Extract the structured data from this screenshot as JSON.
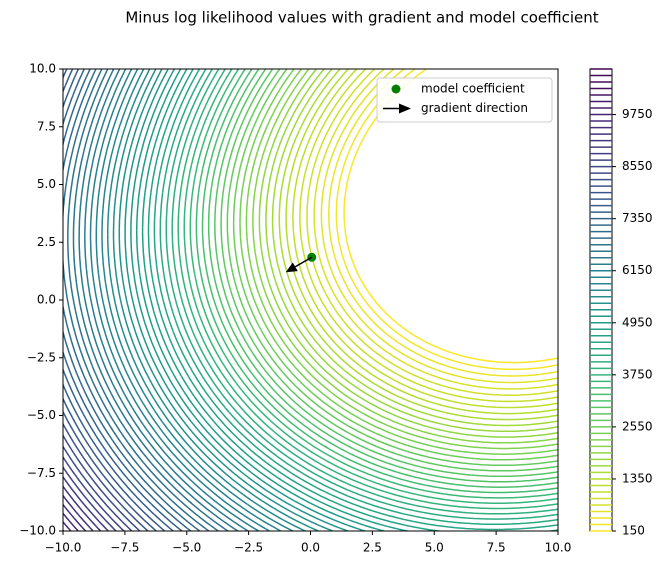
{
  "chart_data": {
    "type": "contour",
    "title": "Minus log likelihood values with gradient and model coefficient",
    "xlim": [
      -10,
      10
    ],
    "ylim": [
      -10,
      10
    ],
    "xticks": [
      {
        "value": -10,
        "label": "−10.0"
      },
      {
        "value": -7.5,
        "label": "−7.5"
      },
      {
        "value": -5,
        "label": "−5.0"
      },
      {
        "value": -2.5,
        "label": "−2.5"
      },
      {
        "value": 0,
        "label": "0.0"
      },
      {
        "value": 2.5,
        "label": "2.5"
      },
      {
        "value": 5,
        "label": "5.0"
      },
      {
        "value": 7.5,
        "label": "7.5"
      },
      {
        "value": 10,
        "label": "10.0"
      }
    ],
    "yticks": [
      {
        "value": -10,
        "label": "−10.0"
      },
      {
        "value": -7.5,
        "label": "−7.5"
      },
      {
        "value": -5,
        "label": "−5.0"
      },
      {
        "value": -2.5,
        "label": "−2.5"
      },
      {
        "value": 0,
        "label": "0.0"
      },
      {
        "value": 2.5,
        "label": "2.5"
      },
      {
        "value": 5,
        "label": "5.0"
      },
      {
        "value": 7.5,
        "label": "7.5"
      },
      {
        "value": 10,
        "label": "10.0"
      }
    ],
    "levels": [
      150,
      300,
      450,
      600,
      750,
      900,
      1050,
      1200,
      1350,
      1500,
      1650,
      1800,
      1950,
      2100,
      2250,
      2400,
      2550,
      2700,
      2850,
      3000,
      3150,
      3300,
      3450,
      3600,
      3750,
      3900,
      4050,
      4200,
      4350,
      4500,
      4650,
      4800,
      4950,
      5100,
      5250,
      5400,
      5550,
      5700,
      5850,
      6000,
      6150,
      6300,
      6450,
      6600,
      6750,
      6900,
      7050,
      7200,
      7350,
      7500,
      7650,
      7800,
      7950,
      8100,
      8250,
      8400,
      8550,
      8700,
      8850,
      9000,
      9150,
      9300,
      9450,
      9600,
      9750,
      9900,
      10050,
      10200,
      10350,
      10500,
      10650,
      10800
    ],
    "colormap": "viridis_r",
    "clim": [
      150,
      10800
    ],
    "cticks": [
      150,
      1350,
      2550,
      3750,
      4950,
      6150,
      7350,
      8550,
      9750
    ],
    "legend": "upper right",
    "series": [
      {
        "name": "model coefficient",
        "type": "scatter",
        "color": "#008000",
        "x": [
          0.05
        ],
        "y": [
          1.85
        ]
      },
      {
        "name": "gradient direction",
        "type": "arrow",
        "color": "#000000",
        "x": [
          0.05
        ],
        "y": [
          1.85
        ],
        "dx": [
          -1.05
        ],
        "dy": [
          -0.65
        ]
      }
    ]
  }
}
